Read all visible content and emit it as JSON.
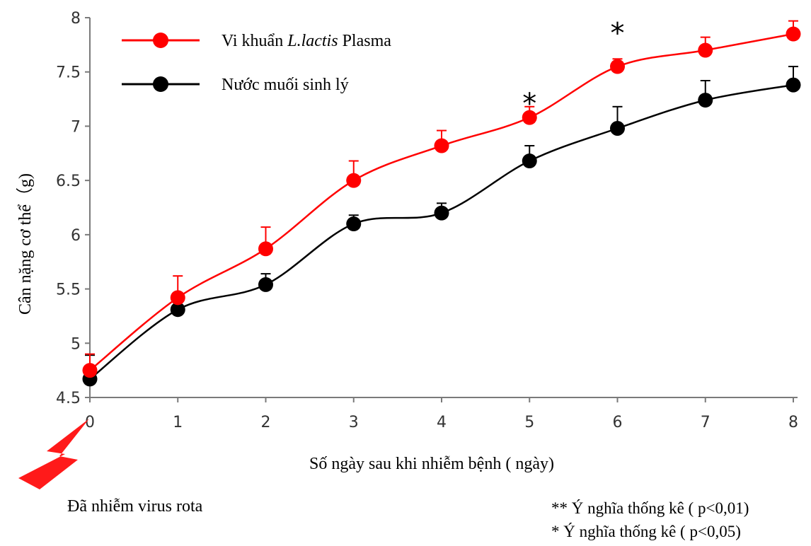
{
  "chart_data": {
    "type": "line",
    "x": [
      0,
      1,
      2,
      3,
      4,
      5,
      6,
      7,
      8
    ],
    "xlabel": "Số ngày sau khi nhiễm bệnh ( ngày)",
    "ylabel": "Cân nặng cơ thể（g)",
    "ylim": [
      4.5,
      8
    ],
    "yticks": [
      "4.5",
      "5",
      "5.5",
      "6",
      "6.5",
      "7",
      "7.5",
      "8"
    ],
    "xticks": [
      "0",
      "1",
      "2",
      "3",
      "4",
      "5",
      "6",
      "7",
      "8"
    ],
    "grid": false,
    "legend_position": "top-left",
    "series": [
      {
        "name_prefix": "Vi khuẩn ",
        "name_italic": "L.lactis",
        "name_suffix": " Plasma",
        "color": "#ff0000",
        "values": [
          4.75,
          5.42,
          5.87,
          6.5,
          6.82,
          7.08,
          7.55,
          7.7,
          7.85
        ],
        "errors": [
          0.15,
          0.2,
          0.2,
          0.18,
          0.14,
          0.1,
          0.07,
          0.12,
          0.12
        ]
      },
      {
        "name": "Nước muối sinh lý",
        "color": "#000000",
        "values": [
          4.67,
          5.31,
          5.54,
          6.1,
          6.2,
          6.68,
          6.98,
          7.24,
          7.38
        ],
        "errors": [
          0.22,
          0.09,
          0.1,
          0.08,
          0.09,
          0.14,
          0.2,
          0.18,
          0.17
        ]
      }
    ],
    "significance_marks": [
      {
        "x": 5,
        "y": 7.25,
        "text": "*"
      },
      {
        "x": 6,
        "y": 7.9,
        "text": "*"
      }
    ],
    "annotations": {
      "infection_label": "Đã nhiễm virus rota",
      "infection_color": "#ff1a1a",
      "note_highly_significant": "** Ý nghĩa thống kê ( p<0,01)",
      "note_significant": "* Ý nghĩa thống kê ( p<0,05)"
    }
  }
}
